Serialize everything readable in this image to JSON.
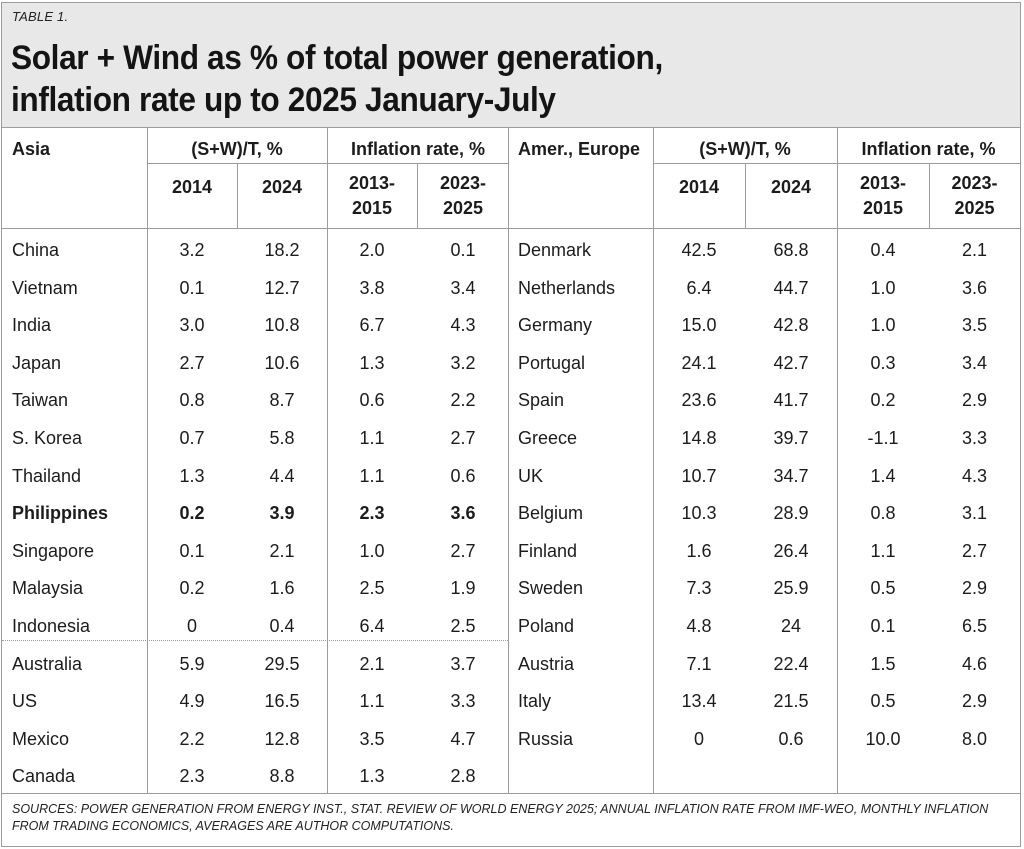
{
  "table": {
    "tag": "TABLE 1.",
    "title_line1": "Solar + Wind as % of total power generation,",
    "title_line2": "inflation rate up to 2025 January-July",
    "left_header": {
      "region": "Asia",
      "sw_group": "(S+W)/T, %",
      "infl_group": "Inflation rate, %",
      "sw_years": [
        "2014",
        "2024"
      ],
      "infl_years": [
        [
          "2013-",
          "2015"
        ],
        [
          "2023-",
          "2025"
        ]
      ]
    },
    "right_header": {
      "region": "Amer., Europe",
      "sw_group": "(S+W)/T, %",
      "infl_group": "Inflation rate, %",
      "sw_years": [
        "2014",
        "2024"
      ],
      "infl_years": [
        [
          "2013-",
          "2015"
        ],
        [
          "2023-",
          "2025"
        ]
      ]
    },
    "left_rows": [
      {
        "country": "China",
        "sw2014": "3.2",
        "sw2024": "18.2",
        "inf1315": "2.0",
        "inf2325": "0.1"
      },
      {
        "country": "Vietnam",
        "sw2014": "0.1",
        "sw2024": "12.7",
        "inf1315": "3.8",
        "inf2325": "3.4"
      },
      {
        "country": "India",
        "sw2014": "3.0",
        "sw2024": "10.8",
        "inf1315": "6.7",
        "inf2325": "4.3"
      },
      {
        "country": "Japan",
        "sw2014": "2.7",
        "sw2024": "10.6",
        "inf1315": "1.3",
        "inf2325": "3.2"
      },
      {
        "country": "Taiwan",
        "sw2014": "0.8",
        "sw2024": "8.7",
        "inf1315": "0.6",
        "inf2325": "2.2"
      },
      {
        "country": "S. Korea",
        "sw2014": "0.7",
        "sw2024": "5.8",
        "inf1315": "1.1",
        "inf2325": "2.7"
      },
      {
        "country": "Thailand",
        "sw2014": "1.3",
        "sw2024": "4.4",
        "inf1315": "1.1",
        "inf2325": "0.6"
      },
      {
        "country": "Philippines",
        "sw2014": "0.2",
        "sw2024": "3.9",
        "inf1315": "2.3",
        "inf2325": "3.6",
        "bold": true
      },
      {
        "country": "Singapore",
        "sw2014": "0.1",
        "sw2024": "2.1",
        "inf1315": "1.0",
        "inf2325": "2.7"
      },
      {
        "country": "Malaysia",
        "sw2014": "0.2",
        "sw2024": "1.6",
        "inf1315": "2.5",
        "inf2325": "1.9"
      },
      {
        "country": "Indonesia",
        "sw2014": "0",
        "sw2024": "0.4",
        "inf1315": "6.4",
        "inf2325": "2.5"
      },
      {
        "country": "Australia",
        "sw2014": "5.9",
        "sw2024": "29.5",
        "inf1315": "2.1",
        "inf2325": "3.7"
      },
      {
        "country": "US",
        "sw2014": "4.9",
        "sw2024": "16.5",
        "inf1315": "1.1",
        "inf2325": "3.3"
      },
      {
        "country": "Mexico",
        "sw2014": "2.2",
        "sw2024": "12.8",
        "inf1315": "3.5",
        "inf2325": "4.7"
      },
      {
        "country": "Canada",
        "sw2014": "2.3",
        "sw2024": "8.8",
        "inf1315": "1.3",
        "inf2325": "2.8"
      }
    ],
    "right_rows": [
      {
        "country": "Denmark",
        "sw2014": "42.5",
        "sw2024": "68.8",
        "inf1315": "0.4",
        "inf2325": "2.1"
      },
      {
        "country": "Netherlands",
        "sw2014": "6.4",
        "sw2024": "44.7",
        "inf1315": "1.0",
        "inf2325": "3.6"
      },
      {
        "country": "Germany",
        "sw2014": "15.0",
        "sw2024": "42.8",
        "inf1315": "1.0",
        "inf2325": "3.5"
      },
      {
        "country": "Portugal",
        "sw2014": "24.1",
        "sw2024": "42.7",
        "inf1315": "0.3",
        "inf2325": "3.4"
      },
      {
        "country": "Spain",
        "sw2014": "23.6",
        "sw2024": "41.7",
        "inf1315": "0.2",
        "inf2325": "2.9"
      },
      {
        "country": "Greece",
        "sw2014": "14.8",
        "sw2024": "39.7",
        "inf1315": "-1.1",
        "inf2325": "3.3"
      },
      {
        "country": "UK",
        "sw2014": "10.7",
        "sw2024": "34.7",
        "inf1315": "1.4",
        "inf2325": "4.3"
      },
      {
        "country": "Belgium",
        "sw2014": "10.3",
        "sw2024": "28.9",
        "inf1315": "0.8",
        "inf2325": "3.1"
      },
      {
        "country": "Finland",
        "sw2014": "1.6",
        "sw2024": "26.4",
        "inf1315": "1.1",
        "inf2325": "2.7"
      },
      {
        "country": "Sweden",
        "sw2014": "7.3",
        "sw2024": "25.9",
        "inf1315": "0.5",
        "inf2325": "2.9"
      },
      {
        "country": "Poland",
        "sw2014": "4.8",
        "sw2024": "24",
        "inf1315": "0.1",
        "inf2325": "6.5"
      },
      {
        "country": "Austria",
        "sw2014": "7.1",
        "sw2024": "22.4",
        "inf1315": "1.5",
        "inf2325": "4.6"
      },
      {
        "country": "Italy",
        "sw2014": "13.4",
        "sw2024": "21.5",
        "inf1315": "0.5",
        "inf2325": "2.9"
      },
      {
        "country": "Russia",
        "sw2014": "0",
        "sw2024": "0.6",
        "inf1315": "10.0",
        "inf2325": "8.0"
      }
    ],
    "sources_line1": "SOURCES: POWER GENERATION FROM ENERGY INST., STAT. REVIEW OF WORLD ENERGY 2025; ANNUAL INFLATION RATE FROM IMF-WEO, MONTHLY INFLATION",
    "sources_line2": "FROM TRADING ECONOMICS, AVERAGES ARE AUTHOR COMPUTATIONS.",
    "colors": {
      "header_bg": "#e8e8e8",
      "rule": "#9c9c9c",
      "text": "#1c1c1c"
    }
  }
}
